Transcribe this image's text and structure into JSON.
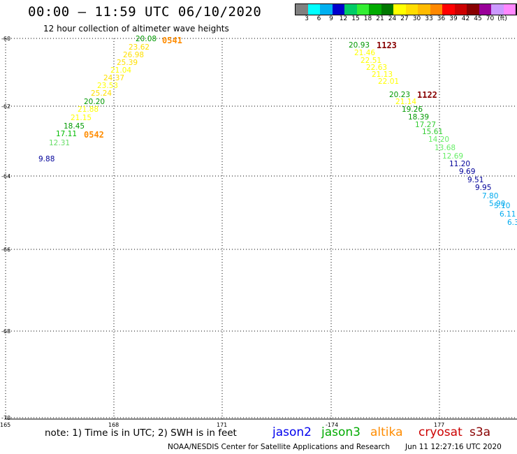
{
  "header": {
    "title": "00:00 – 11:59 UTC 06/10/2020",
    "subtitle": "12 hour collection of altimeter wave heights"
  },
  "legend": {
    "unit": "(ft)",
    "colors": [
      "#808080",
      "#00ffff",
      "#00b0f0",
      "#0000cc",
      "#00cc66",
      "#33ee33",
      "#00aa00",
      "#007700",
      "#ffff00",
      "#ffdd00",
      "#ffbb00",
      "#ff8800",
      "#ff0000",
      "#cc0000",
      "#880000",
      "#990099",
      "#cc99ff",
      "#ff88ff",
      "#000000"
    ],
    "labels": [
      "3",
      "6",
      "9",
      "12",
      "15",
      "18",
      "21",
      "24",
      "27",
      "30",
      "33",
      "36",
      "39",
      "42",
      "45",
      "70"
    ]
  },
  "map": {
    "lat_labels": [
      "-60",
      "-62",
      "-64",
      "-66",
      "-68",
      "-70"
    ],
    "lon_labels": [
      "165",
      "168",
      "171",
      "-174",
      "177"
    ],
    "tracks": [
      {
        "time_labels": [
          {
            "text": "0541",
            "color": "#ff8c00"
          },
          {
            "text": "0542",
            "color": "#ff8c00"
          }
        ],
        "points": [
          {
            "value": "20.08",
            "color": "#009900"
          },
          {
            "value": "23.62",
            "color": "#ffe000"
          },
          {
            "value": "26.98",
            "color": "#ffe000"
          },
          {
            "value": "25.39",
            "color": "#ffe000"
          },
          {
            "value": "21.04",
            "color": "#ffff00"
          },
          {
            "value": "24.37",
            "color": "#ffe000"
          },
          {
            "value": "23.53",
            "color": "#ffff00"
          },
          {
            "value": "25.24",
            "color": "#ffe000"
          },
          {
            "value": "20.20",
            "color": "#009900"
          },
          {
            "value": "21.88",
            "color": "#ffff00"
          },
          {
            "value": "21.15",
            "color": "#ffff00"
          },
          {
            "value": "18.45",
            "color": "#009900"
          },
          {
            "value": "17.11",
            "color": "#00bb00"
          },
          {
            "value": "12.31",
            "color": "#66dd66"
          },
          {
            "value": "9.88",
            "color": "#000099"
          }
        ]
      },
      {
        "time_labels": [
          {
            "text": "1123",
            "color": "#880000"
          },
          {
            "text": "1122",
            "color": "#880000"
          }
        ],
        "points": [
          {
            "value": "20.93",
            "color": "#009900"
          },
          {
            "value": "21.46",
            "color": "#ffff00"
          },
          {
            "value": "22.51",
            "color": "#ffff00"
          },
          {
            "value": "22.63",
            "color": "#ffff00"
          },
          {
            "value": "21.13",
            "color": "#ffff00"
          },
          {
            "value": "22.01",
            "color": "#ffff00"
          },
          {
            "value": "20.23",
            "color": "#009900"
          },
          {
            "value": "21.14",
            "color": "#ffff00"
          },
          {
            "value": "19.26",
            "color": "#009900"
          },
          {
            "value": "18.39",
            "color": "#009900"
          },
          {
            "value": "17.27",
            "color": "#33cc33"
          },
          {
            "value": "15.61",
            "color": "#33cc33"
          },
          {
            "value": "14.20",
            "color": "#66ee66"
          },
          {
            "value": "13.68",
            "color": "#66ee66"
          },
          {
            "value": "12.69",
            "color": "#66ee66"
          },
          {
            "value": "11.20",
            "color": "#000099"
          },
          {
            "value": "9.69",
            "color": "#000099"
          },
          {
            "value": "9.51",
            "color": "#000099"
          },
          {
            "value": "9.95",
            "color": "#000099"
          },
          {
            "value": "7.80",
            "color": "#00aaee"
          },
          {
            "value": "5.90",
            "color": "#00aaee"
          },
          {
            "value": "5.10",
            "color": "#00aaee"
          },
          {
            "value": "6.11",
            "color": "#00aaee"
          },
          {
            "value": "6.3",
            "color": "#00aaee"
          }
        ]
      }
    ]
  },
  "footer": {
    "note": "note: 1) Time is in UTC; 2) SWH is in feet",
    "satellites": [
      {
        "name": "jason2",
        "color": "#0000ee"
      },
      {
        "name": "jason3",
        "color": "#00aa00"
      },
      {
        "name": "altika",
        "color": "#ff8c00"
      },
      {
        "name": "cryosat",
        "color": "#cc0000"
      },
      {
        "name": "s3a",
        "color": "#880000"
      }
    ],
    "credit": "NOAA/NESDIS Center for Satellite Applications and Research",
    "stamp": "Jun 11 12:27:16 UTC 2020"
  }
}
